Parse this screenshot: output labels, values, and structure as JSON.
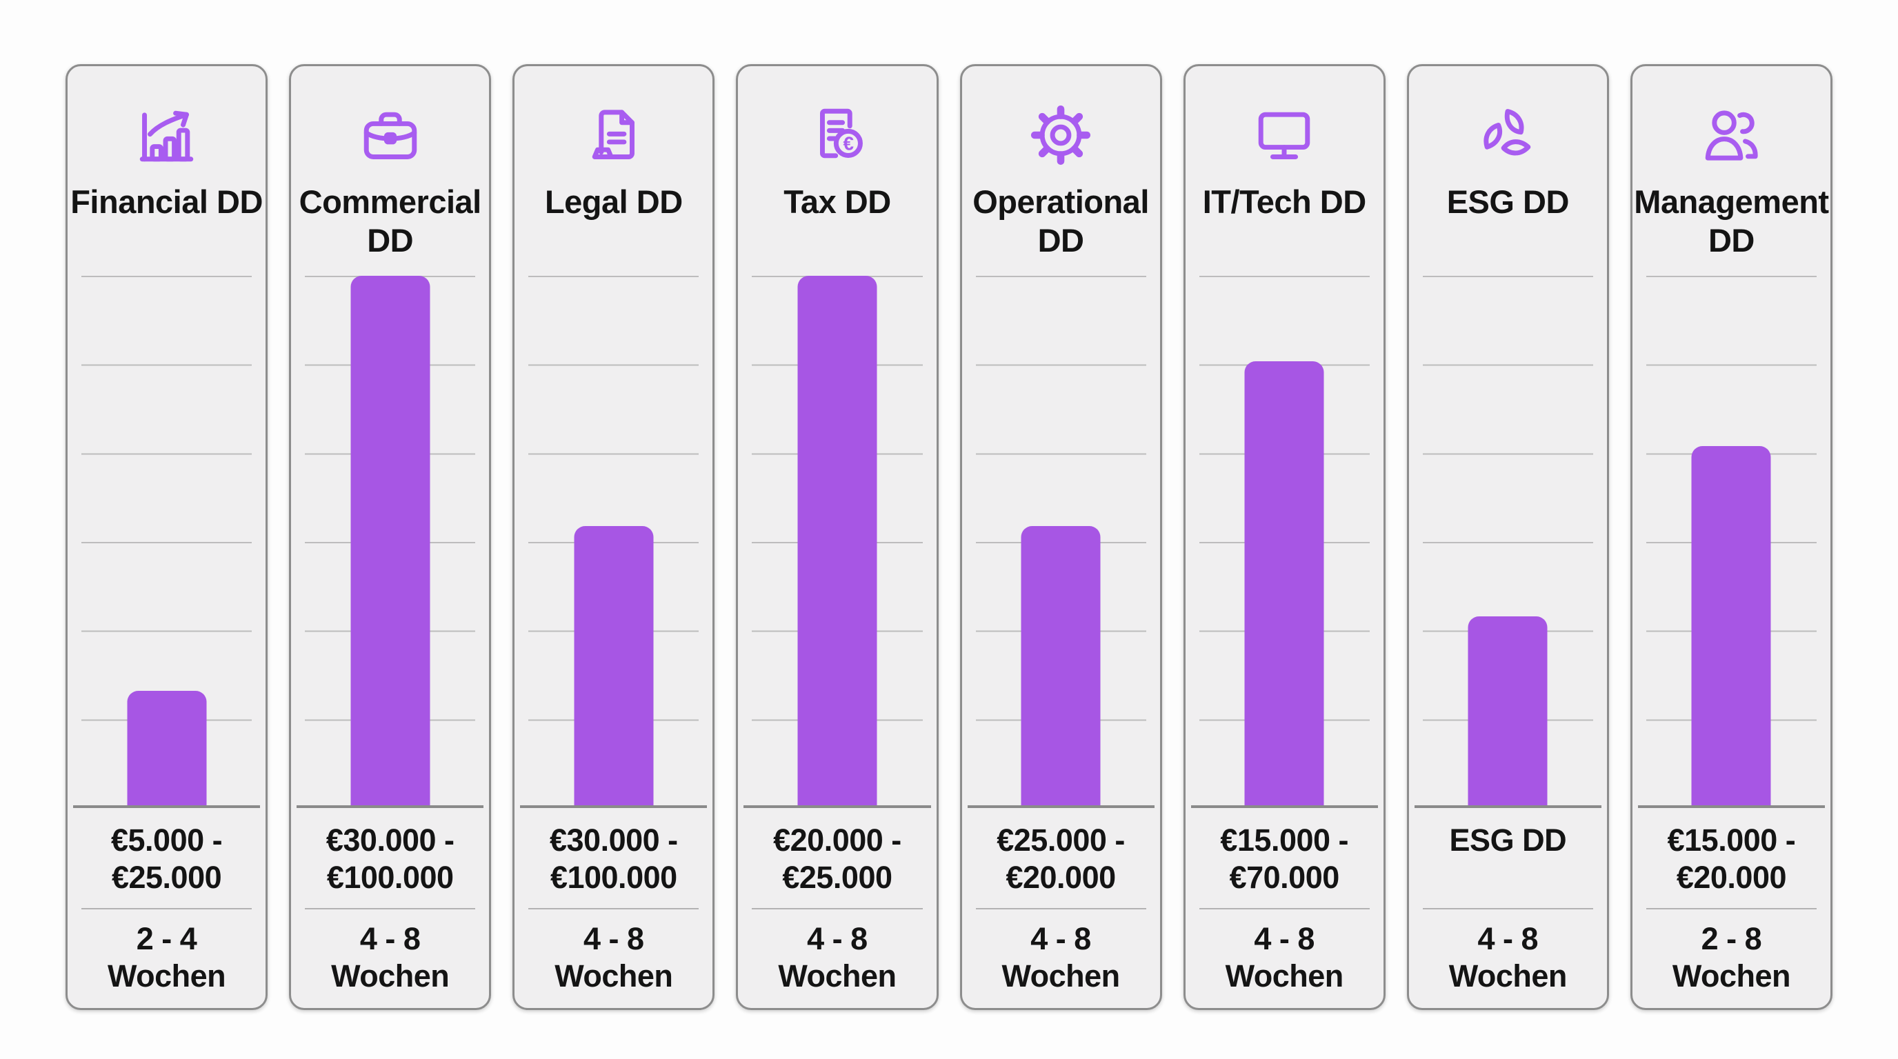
{
  "theme": {
    "accent_icon_color": "#a85cf0",
    "bar_color": "#a756e4",
    "card_background": "#f0eff0",
    "card_border": "#8d8d8d",
    "gridline_color": "#bdbcbd",
    "baseline_color": "#8a8a8a",
    "page_background": "#fdfdfd",
    "text_color": "#141414"
  },
  "chart_data": {
    "type": "bar",
    "title": "",
    "xlabel": "",
    "ylabel": "",
    "categories": [
      "Financial DD",
      "Commercial DD",
      "Legal DD",
      "Tax DD",
      "Operational DD",
      "IT/Tech DD",
      "ESG DD",
      "Management DD"
    ],
    "values_percent_of_axis": [
      22,
      100,
      53,
      100,
      53,
      84,
      36,
      68
    ],
    "ylim": [
      0,
      100
    ],
    "grid": true,
    "gridline_intervals": 6,
    "legend": false,
    "annotations": {
      "price_ranges": [
        "€5.000 - €25.000",
        "€30.000 - €100.000",
        "€30.000 - €100.000",
        "€20.000 - €25.000",
        "€25.000 - €20.000",
        "€15.000 - €70.000",
        "ESG DD",
        "€15.000 - €20.000"
      ],
      "durations": [
        "2 - 4 Wochen",
        "4 - 8 Wochen",
        "4 - 8 Wochen",
        "4 - 8 Wochen",
        "4 - 8 Wochen",
        "4 - 8 Wochen",
        "4 - 8 Wochen",
        "2 - 8 Wochen"
      ]
    }
  },
  "cards": [
    {
      "title": "Financial DD",
      "icon": "growth-chart-icon",
      "bar_percent": 22,
      "price_line1": "€5.000 -",
      "price_line2": "€25.000",
      "duration_line1": "2 - 4",
      "duration_line2": "Wochen"
    },
    {
      "title": "Commercial DD",
      "icon": "briefcase-icon",
      "bar_percent": 100,
      "price_line1": "€30.000 -",
      "price_line2": "€100.000",
      "duration_line1": "4 - 8",
      "duration_line2": "Wochen"
    },
    {
      "title": "Legal DD",
      "icon": "document-icon",
      "bar_percent": 53,
      "price_line1": "€30.000 -",
      "price_line2": "€100.000",
      "duration_line1": "4 - 8",
      "duration_line2": "Wochen"
    },
    {
      "title": "Tax DD",
      "icon": "receipt-euro-icon",
      "bar_percent": 100,
      "price_line1": "€20.000 -",
      "price_line2": "€25.000",
      "duration_line1": "4 - 8",
      "duration_line2": "Wochen"
    },
    {
      "title": "Operational DD",
      "icon": "gear-icon",
      "bar_percent": 53,
      "price_line1": "€25.000 -",
      "price_line2": "€20.000",
      "duration_line1": "4 - 8",
      "duration_line2": "Wochen"
    },
    {
      "title": "IT/Tech DD",
      "icon": "monitor-icon",
      "bar_percent": 84,
      "price_line1": "€15.000 -",
      "price_line2": "€70.000",
      "duration_line1": "4 - 8",
      "duration_line2": "Wochen"
    },
    {
      "title": "ESG DD",
      "icon": "leaves-circle-icon",
      "bar_percent": 36,
      "price_line1": "ESG DD",
      "price_line2": "",
      "duration_line1": "4 - 8",
      "duration_line2": "Wochen"
    },
    {
      "title": "Management DD",
      "icon": "people-icon",
      "bar_percent": 68,
      "price_line1": "€15.000 -",
      "price_line2": "€20.000",
      "duration_line1": "2 - 8",
      "duration_line2": "Wochen"
    }
  ]
}
